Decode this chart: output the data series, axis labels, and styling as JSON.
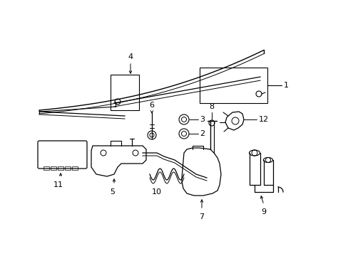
{
  "background_color": "#ffffff",
  "line_color": "#000000",
  "label_color": "#000000",
  "figsize": [
    4.89,
    3.6
  ],
  "dpi": 100
}
